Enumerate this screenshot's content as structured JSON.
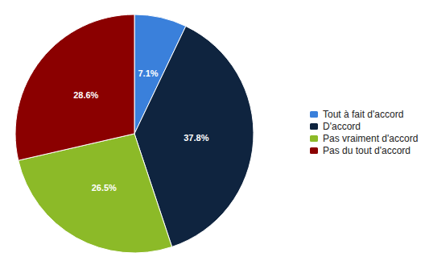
{
  "chart_data": {
    "type": "pie",
    "categories": [
      "Tout à fait d'accord",
      "D'accord",
      "Pas vraiment d'accord",
      "Pas du tout d'accord"
    ],
    "values": [
      7.1,
      37.8,
      26.5,
      28.6
    ],
    "value_labels": [
      "7.1%",
      "37.8%",
      "26.5%",
      "28.6%"
    ],
    "colors": [
      "#3a80db",
      "#0f243f",
      "#8cba28",
      "#8b0000"
    ],
    "data_labels": true,
    "legend": "right"
  }
}
